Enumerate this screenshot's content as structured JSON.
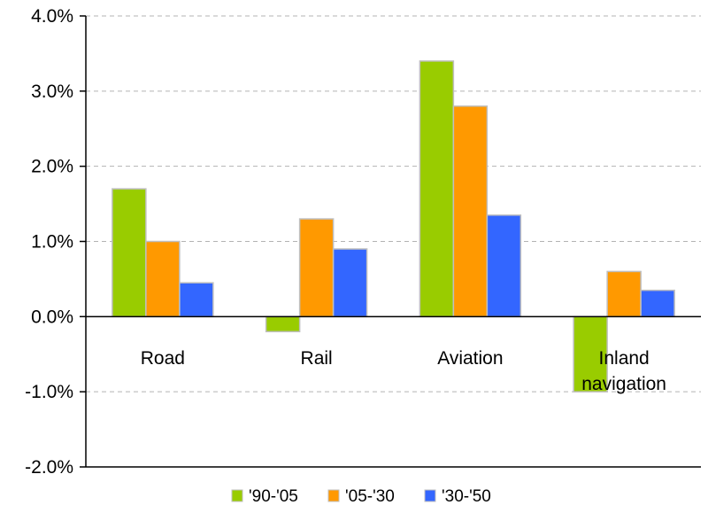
{
  "chart_data": {
    "type": "bar",
    "categories": [
      "Road",
      "Rail",
      "Aviation",
      "Inland navigation"
    ],
    "category_lines": [
      [
        "Road"
      ],
      [
        "Rail"
      ],
      [
        "Aviation"
      ],
      [
        "Inland",
        "navigation"
      ]
    ],
    "series": [
      {
        "name": "'90-'05",
        "color": "#99CC00",
        "values": [
          1.7,
          -0.2,
          3.4,
          -1.0
        ]
      },
      {
        "name": "'05-'30",
        "color": "#FF9900",
        "values": [
          1.0,
          1.3,
          2.8,
          0.6
        ]
      },
      {
        "name": "'30-'50",
        "color": "#3366FF",
        "values": [
          0.45,
          0.9,
          1.35,
          0.35
        ]
      }
    ],
    "ylim": [
      -2.0,
      4.0
    ],
    "yticks": [
      -2.0,
      -1.0,
      0.0,
      1.0,
      2.0,
      3.0,
      4.0
    ],
    "ytick_labels": [
      "-2.0%",
      "-1.0%",
      "0.0%",
      "1.0%",
      "2.0%",
      "3.0%",
      "4.0%"
    ],
    "grid": true,
    "legend_position": "bottom"
  }
}
